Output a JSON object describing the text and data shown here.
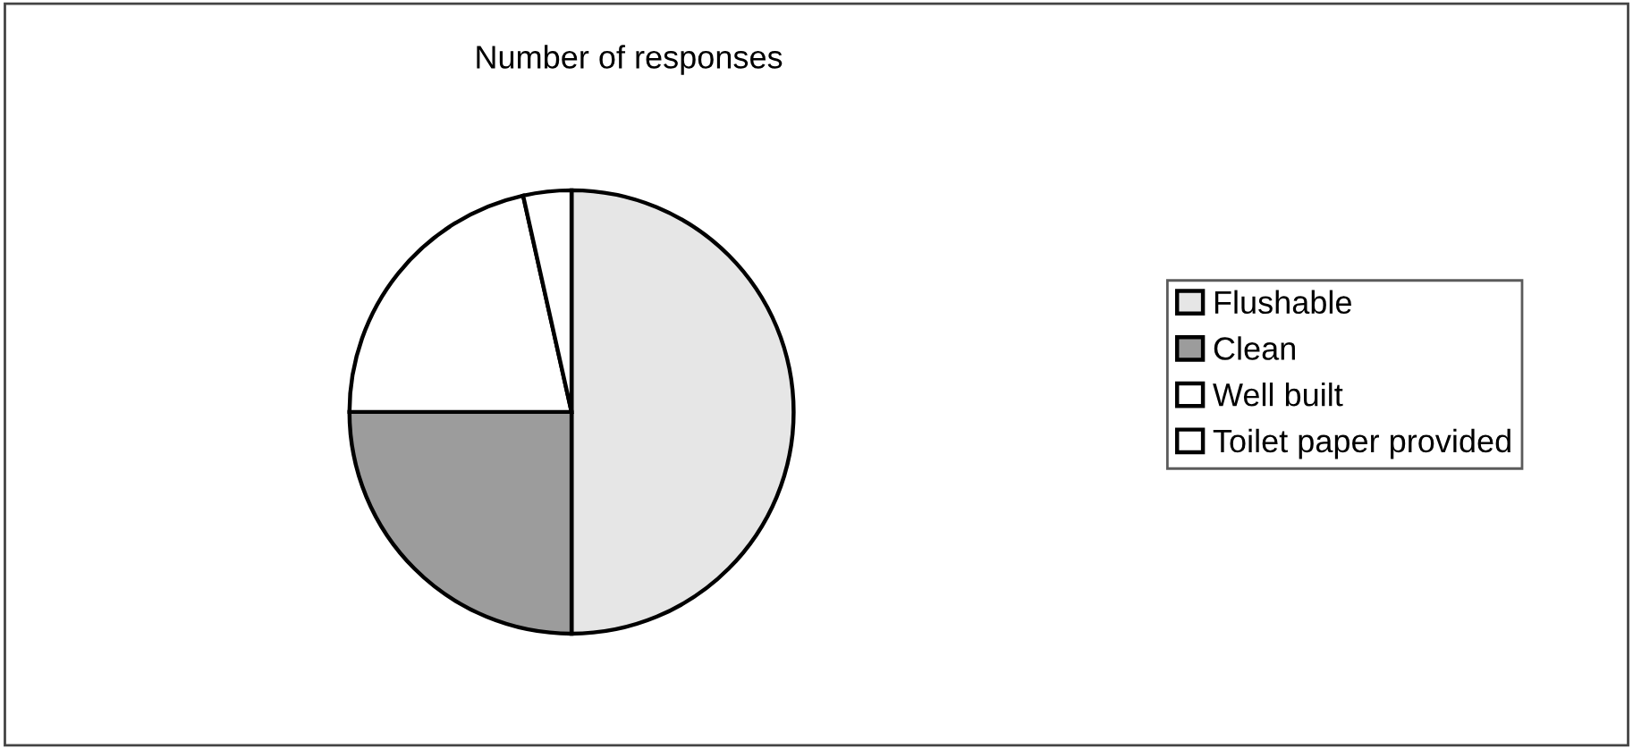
{
  "chart_data": {
    "type": "pie",
    "title": "Number of responses",
    "categories": [
      "Flushable",
      "Clean",
      "Well built",
      "Toilet paper provided"
    ],
    "values": [
      50,
      25,
      21.5,
      3.5
    ],
    "colors": [
      "#e6e6e6",
      "#9c9c9c",
      "#ffffff",
      "#ffffff"
    ],
    "legend": "right"
  }
}
